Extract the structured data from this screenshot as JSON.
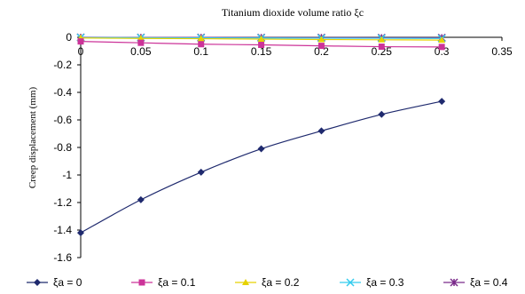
{
  "chart_data": {
    "type": "line",
    "title": "Titanium dioxide volume ratio ξc",
    "xlabel": "",
    "ylabel": "Creep displacement (mm)",
    "x": [
      0,
      0.05,
      0.1,
      0.15,
      0.2,
      0.25,
      0.3
    ],
    "xlim": [
      0,
      0.35
    ],
    "ylim": [
      -1.6,
      0
    ],
    "xticks": [
      "0",
      "0.05",
      "0.1",
      "0.15",
      "0.2",
      "0.25",
      "0.3",
      "0.35"
    ],
    "yticks": [
      "0",
      "-0.2",
      "-0.4",
      "-0.6",
      "-0.8",
      "-1",
      "-1.2",
      "-1.4",
      "-1.6"
    ],
    "x_axis_position": "top",
    "grid": false,
    "legend_position": "bottom",
    "series": [
      {
        "name": "ξa = 0",
        "color": "#1f2a6e",
        "marker": "diamond",
        "values": [
          -1.42,
          -1.18,
          -0.98,
          -0.81,
          -0.68,
          -0.56,
          -0.465
        ]
      },
      {
        "name": "ξa = 0.1",
        "color": "#cc3399",
        "marker": "square",
        "values": [
          -0.03,
          -0.04,
          -0.05,
          -0.055,
          -0.062,
          -0.068,
          -0.07
        ]
      },
      {
        "name": "ξa = 0.2",
        "color": "#e6d200",
        "marker": "triangle",
        "values": [
          -0.005,
          -0.008,
          -0.01,
          -0.013,
          -0.016,
          -0.018,
          -0.02
        ]
      },
      {
        "name": "ξa = 0.3",
        "color": "#33ccee",
        "marker": "x",
        "values": [
          -0.002,
          -0.003,
          -0.004,
          -0.005,
          -0.006,
          -0.007,
          -0.008
        ]
      },
      {
        "name": "ξa = 0.4",
        "color": "#7a2a8a",
        "marker": "star",
        "values": [
          0,
          -0.001,
          -0.001,
          -0.002,
          -0.002,
          -0.003,
          -0.003
        ]
      }
    ]
  }
}
